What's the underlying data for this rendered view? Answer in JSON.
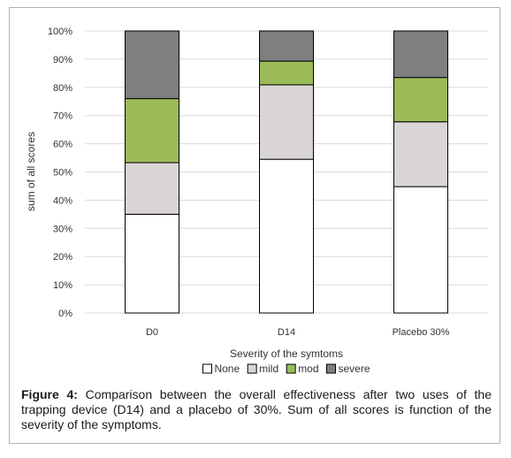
{
  "caption": {
    "label": "Figure 4:",
    "text": " Comparison between the overall effectiveness after two uses of the trapping device (D14) and a placebo of 30%. Sum of all scores is function of the severity of the symptoms."
  },
  "colors": {
    "None": "#ffffff",
    "mild": "#d9d5d5",
    "mod": "#9bbb59",
    "severe": "#7f7f7f",
    "grid": "#d9d9d9",
    "bar_stroke": "#000000"
  },
  "chart_data": {
    "type": "bar",
    "stacked": true,
    "title": "",
    "xlabel": "Severity of the symtoms",
    "ylabel": "sum of all scores",
    "ylim": [
      0,
      100
    ],
    "y_ticks": [
      "0%",
      "10%",
      "20%",
      "30%",
      "40%",
      "50%",
      "60%",
      "70%",
      "80%",
      "90%",
      "100%"
    ],
    "categories": [
      "D0",
      "D14",
      "Placebo 30%"
    ],
    "series": [
      {
        "name": "None",
        "values": [
          35,
          54.5,
          44.8
        ]
      },
      {
        "name": "mild",
        "values": [
          18.3,
          26.4,
          23
        ]
      },
      {
        "name": "mod",
        "values": [
          22.7,
          8.4,
          15.7
        ]
      },
      {
        "name": "severe",
        "values": [
          24,
          10.7,
          16.5
        ]
      }
    ],
    "grid": true,
    "legend_position": "bottom"
  }
}
